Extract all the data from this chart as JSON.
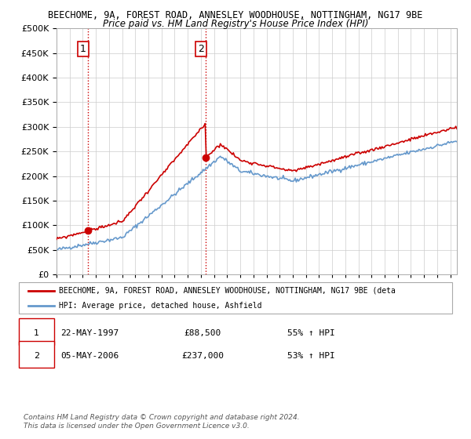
{
  "title1": "BEECHOME, 9A, FOREST ROAD, ANNESLEY WOODHOUSE, NOTTINGHAM, NG17 9BE",
  "title2": "Price paid vs. HM Land Registry's House Price Index (HPI)",
  "legend_line1": "BEECHOME, 9A, FOREST ROAD, ANNESLEY WOODHOUSE, NOTTINGHAM, NG17 9BE (deta",
  "legend_line2": "HPI: Average price, detached house, Ashfield",
  "transaction1_date": "22-MAY-1997",
  "transaction1_price": "£88,500",
  "transaction1_hpi": "55% ↑ HPI",
  "transaction1_year": 1997.38,
  "transaction1_value": 88500,
  "transaction2_date": "05-MAY-2006",
  "transaction2_price": "£237,000",
  "transaction2_hpi": "53% ↑ HPI",
  "transaction2_year": 2006.34,
  "transaction2_value": 237000,
  "footer": "Contains HM Land Registry data © Crown copyright and database right 2024.\nThis data is licensed under the Open Government Licence v3.0.",
  "ylim": [
    0,
    500000
  ],
  "xlim_start": 1995.0,
  "xlim_end": 2025.5,
  "hpi_color": "#6699cc",
  "price_color": "#cc0000",
  "transaction_vline_color": "#cc0000",
  "background_color": "#ffffff",
  "grid_color": "#cccccc"
}
